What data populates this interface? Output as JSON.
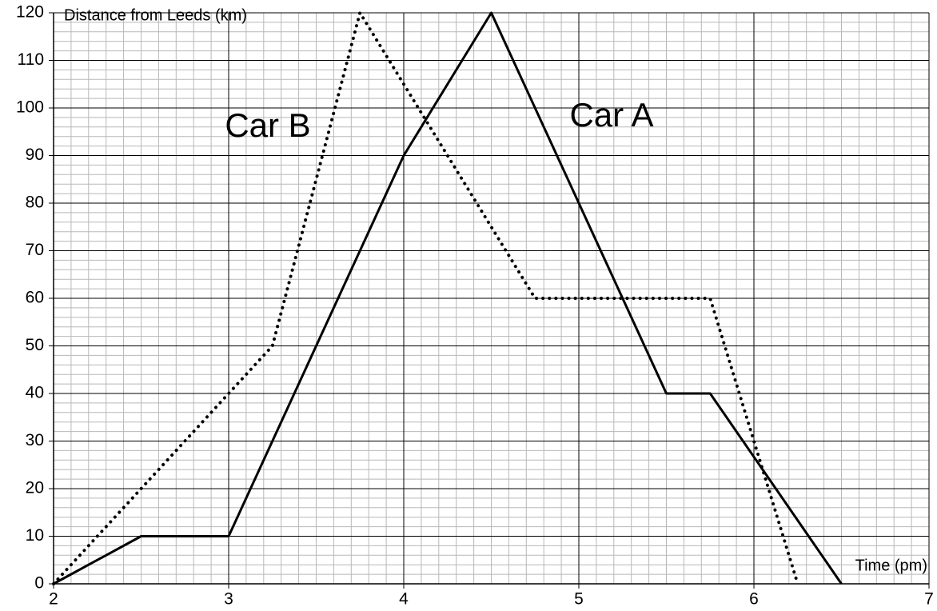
{
  "chart_data": {
    "type": "line",
    "y_label": "Distance from Leeds (km)",
    "x_label": "Time (pm)",
    "xlim": [
      2,
      7
    ],
    "xticks": [
      2,
      3,
      4,
      5,
      6,
      7
    ],
    "ylim": [
      0,
      120
    ],
    "yticks": [
      0,
      10,
      20,
      30,
      40,
      50,
      60,
      70,
      80,
      90,
      100,
      110,
      120
    ],
    "grid": true,
    "minor_grid": {
      "x_step": 0.1,
      "y_step": 2
    },
    "series": [
      {
        "name": "Car A",
        "color": "#000000",
        "style": "solid",
        "x": [
          2,
          2.5,
          3,
          4,
          4.5,
          5.5,
          5.75,
          6.5
        ],
        "values": [
          0,
          10,
          10,
          90,
          120,
          40,
          40,
          0
        ]
      },
      {
        "name": "Car B",
        "color": "#000000",
        "style": "dotted",
        "x": [
          2,
          3,
          3.25,
          3.75,
          4.75,
          5.75,
          6.25
        ],
        "values": [
          0,
          40,
          50,
          120,
          60,
          60,
          0
        ]
      }
    ]
  }
}
